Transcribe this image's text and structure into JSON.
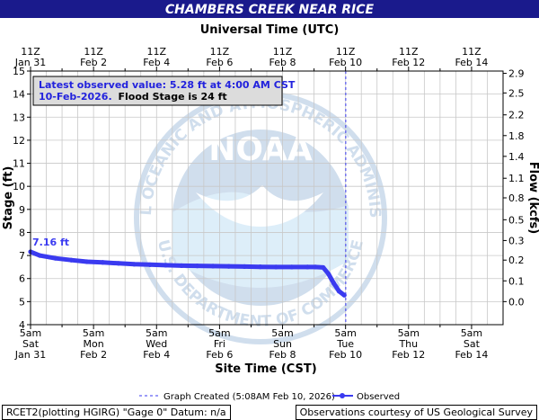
{
  "header": {
    "title": "CHAMBERS CREEK NEAR RICE"
  },
  "info_box": {
    "line1": "Latest observed value: 5.28 ft at 4:00 AM CST",
    "line2_blue": "10-Feb-2026.",
    "line2_black": "Flood Stage is 24 ft"
  },
  "watermark": {
    "text": "NOAA",
    "ring_top": "NATIONAL OCEANIC AND ATMOSPHERIC ADMINISTRATION",
    "ring_bottom": "U.S. DEPARTMENT OF COMMERCE"
  },
  "footer": {
    "left": "RCET2(plotting HGIRG) \"Gage 0\" Datum: n/a",
    "right": "Observations courtesy of US Geological Survey"
  },
  "chart_data": {
    "type": "line",
    "top_axis_title": "Universal Time (UTC)",
    "top_tick_labels": [
      [
        "11Z",
        "Jan 31"
      ],
      [
        "11Z",
        "Feb  2"
      ],
      [
        "11Z",
        "Feb  4"
      ],
      [
        "11Z",
        "Feb  6"
      ],
      [
        "11Z",
        "Feb  8"
      ],
      [
        "11Z",
        "Feb 10"
      ],
      [
        "11Z",
        "Feb 12"
      ],
      [
        "11Z",
        "Feb 14"
      ]
    ],
    "bottom_axis_title": "Site Time (CST)",
    "bottom_tick_labels": [
      [
        "5am",
        "Sat",
        "Jan 31"
      ],
      [
        "5am",
        "Mon",
        "Feb 2"
      ],
      [
        "5am",
        "Wed",
        "Feb 4"
      ],
      [
        "5am",
        "Fri",
        "Feb 6"
      ],
      [
        "5am",
        "Sun",
        "Feb 8"
      ],
      [
        "5am",
        "Tue",
        "Feb 10"
      ],
      [
        "5am",
        "Thu",
        "Feb 12"
      ],
      [
        "5am",
        "Sat",
        "Feb 14"
      ]
    ],
    "xlim": [
      "2026-01-31T05:00",
      "2026-02-15T05:00"
    ],
    "y_left_label": "Stage (ft)",
    "ylim": [
      4,
      15
    ],
    "y_left_ticks": [
      4,
      5,
      6,
      7,
      8,
      9,
      10,
      11,
      12,
      13,
      14,
      15
    ],
    "y_right_label": "Flow (kcfs)",
    "y_right_ticks": [
      {
        "stage": 5,
        "label": "0.0"
      },
      {
        "stage": 5.9,
        "label": "0.1"
      },
      {
        "stage": 6.8,
        "label": "0.2"
      },
      {
        "stage": 7.65,
        "label": "0.3"
      },
      {
        "stage": 8.55,
        "label": "0.5"
      },
      {
        "stage": 9.5,
        "label": "0.8"
      },
      {
        "stage": 10.35,
        "label": "1.1"
      },
      {
        "stage": 11.3,
        "label": "1.4"
      },
      {
        "stage": 12.2,
        "label": "1.8"
      },
      {
        "stage": 13.1,
        "label": "2.2"
      },
      {
        "stage": 14.05,
        "label": "2.5"
      },
      {
        "stage": 14.9,
        "label": "2.9"
      }
    ],
    "graph_created": "2026-02-10T05:08",
    "grid": true,
    "series": [
      {
        "name": "Observed",
        "color": "#3a3af0",
        "points": [
          [
            "2026-01-31T05:00",
            7.16
          ],
          [
            "2026-01-31T12:00",
            7.0
          ],
          [
            "2026-02-01T00:00",
            6.88
          ],
          [
            "2026-02-01T12:00",
            6.8
          ],
          [
            "2026-02-02T00:00",
            6.73
          ],
          [
            "2026-02-02T12:00",
            6.7
          ],
          [
            "2026-02-03T00:00",
            6.66
          ],
          [
            "2026-02-03T12:00",
            6.62
          ],
          [
            "2026-02-04T00:00",
            6.6
          ],
          [
            "2026-02-04T12:00",
            6.58
          ],
          [
            "2026-02-05T00:00",
            6.56
          ],
          [
            "2026-02-05T12:00",
            6.55
          ],
          [
            "2026-02-06T00:00",
            6.54
          ],
          [
            "2026-02-06T12:00",
            6.53
          ],
          [
            "2026-02-07T00:00",
            6.52
          ],
          [
            "2026-02-07T12:00",
            6.51
          ],
          [
            "2026-02-08T00:00",
            6.5
          ],
          [
            "2026-02-08T12:00",
            6.5
          ],
          [
            "2026-02-09T00:00",
            6.5
          ],
          [
            "2026-02-09T06:00",
            6.5
          ],
          [
            "2026-02-09T12:00",
            6.48
          ],
          [
            "2026-02-09T16:00",
            6.2
          ],
          [
            "2026-02-09T20:00",
            5.8
          ],
          [
            "2026-02-10T00:00",
            5.45
          ],
          [
            "2026-02-10T04:00",
            5.28
          ]
        ]
      }
    ],
    "annotations": [
      {
        "text": "7.16 ft",
        "x": "2026-01-31T05:00",
        "y": 7.16
      }
    ],
    "legend": {
      "created_label": "Graph Created (5:08AM Feb 10, 2026)",
      "observed_label": "Observed",
      "placement": "bottom"
    }
  }
}
